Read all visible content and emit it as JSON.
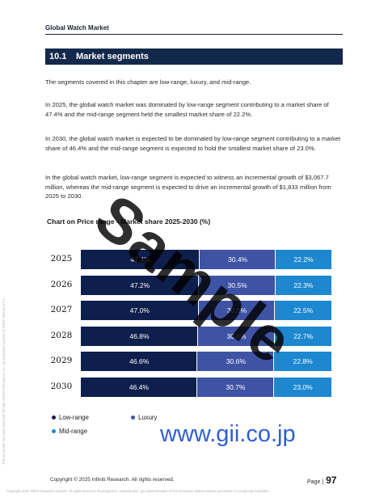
{
  "header": {
    "title": "Global Watch Market"
  },
  "section": {
    "number": "10.1",
    "title": "Market segments"
  },
  "paragraphs": {
    "p1": "The segments covered in this chapter are low-range, luxury, and mid-range.",
    "p2": "In 2025, the global watch market was dominated by low-range segment contributing to a market share of 47.4% and the mid-range segment held the smallest market share of 22.2%.",
    "p3": "In 2030, the global watch market is expected to be dominated by low-range segment contributing to a market share of 46.4% and the mid-range segment is expected to hold the smallest market share of 23.0%.",
    "p4": "In the global watch market, low-range segment is expected to witness an incremental growth of $3,067.7 million, whereas the mid-range segment is expected to drive an incremental growth of $1,833 million from 2025 to 2030."
  },
  "chart_data": {
    "type": "bar",
    "orientation": "horizontal-stacked-100",
    "title": "Chart on Price range - Market share 2025-2030 (%)",
    "categories": [
      "2025",
      "2026",
      "2027",
      "2028",
      "2029",
      "2030"
    ],
    "series": [
      {
        "name": "Low-range",
        "color": "#0e1f4d",
        "values": [
          47.4,
          47.2,
          47.0,
          46.8,
          46.6,
          46.4
        ]
      },
      {
        "name": "Luxury",
        "color": "#3f53a5",
        "values": [
          30.4,
          30.5,
          30.5,
          30.6,
          30.6,
          30.7
        ]
      },
      {
        "name": "Mid-range",
        "color": "#1d87d0",
        "values": [
          22.2,
          22.3,
          22.5,
          22.7,
          22.8,
          23.0
        ]
      }
    ],
    "value_suffix": "%",
    "xlim": [
      0,
      100
    ],
    "grid": false,
    "legend_position": "bottom-left"
  },
  "watermark": {
    "text": "Sample",
    "site": "www.gii.co.jp"
  },
  "footer": {
    "copyright": "Copyright © 2025 Infiniti Research. All rights reserved.",
    "page_label": "Page |",
    "page_number": "97",
    "fine_print": "Copyright 2025 Infiniti Research Limited. All rights reserved. Reproduction, redistribution, and dissemination of this document without written permission is completely forbidden.",
    "side_note": "This document has been licensed through Global Information, Inc. an authorized partner of Infiniti Research Inc."
  }
}
